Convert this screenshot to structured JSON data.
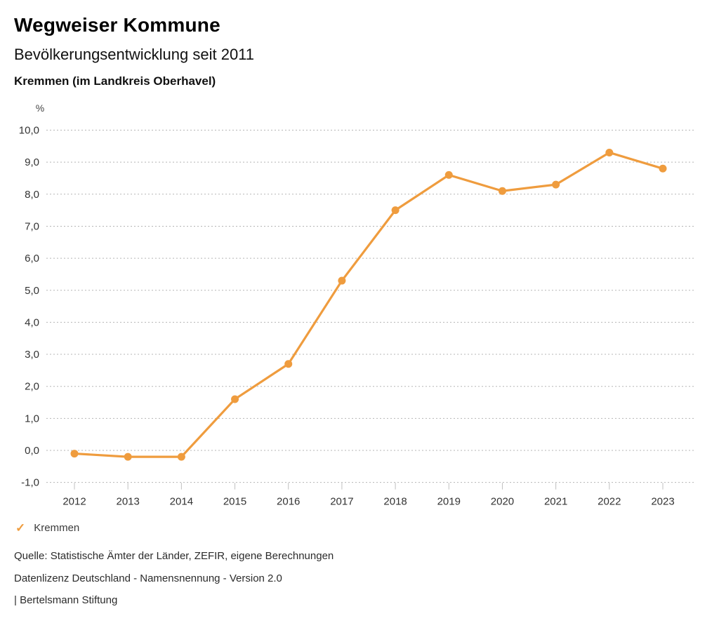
{
  "header": {
    "app_title": "Wegweiser Kommune",
    "chart_title": "Bevölkerungsentwicklung seit 2011",
    "chart_subtitle": "Kremmen (im Landkreis Oberhavel)"
  },
  "chart_data": {
    "type": "line",
    "title": "Bevölkerungsentwicklung seit 2011",
    "subtitle": "Kremmen (im Landkreis Oberhavel)",
    "unit_label": "%",
    "x": [
      "2012",
      "2013",
      "2014",
      "2015",
      "2016",
      "2017",
      "2018",
      "2019",
      "2020",
      "2021",
      "2022",
      "2023"
    ],
    "series": [
      {
        "name": "Kremmen",
        "color": "#EF9C3E",
        "values": [
          -0.1,
          -0.2,
          -0.2,
          1.6,
          2.7,
          5.3,
          7.5,
          8.6,
          8.1,
          8.3,
          9.3,
          8.8
        ]
      }
    ],
    "ylim": [
      -1.0,
      10.0
    ],
    "ytick_step": 1.0,
    "ytick_labels_top_down": [
      "10,0",
      "9,0",
      "8,0",
      "7,0",
      "6,0",
      "5,0",
      "4,0",
      "3,0",
      "2,0",
      "1,0",
      "0,0",
      "-1,0"
    ],
    "grid": "horizontal-dotted",
    "legend_position": "bottom-left"
  },
  "legend": {
    "items": [
      {
        "icon_glyph": "✓",
        "label": "Kremmen",
        "color": "#EF9C3E"
      }
    ]
  },
  "footer": {
    "source_line": "Quelle: Statistische Ämter der Länder, ZEFIR, eigene Berechnungen",
    "license_line": "Datenlizenz Deutschland - Namensnennung - Version 2.0",
    "publisher_line": "| Bertelsmann Stiftung"
  },
  "colors": {
    "series": "#EF9C3E",
    "gridline": "#B5B5B5",
    "tick": "#C0C0C0",
    "axis_text": "#333333",
    "background": "#FFFFFF"
  }
}
